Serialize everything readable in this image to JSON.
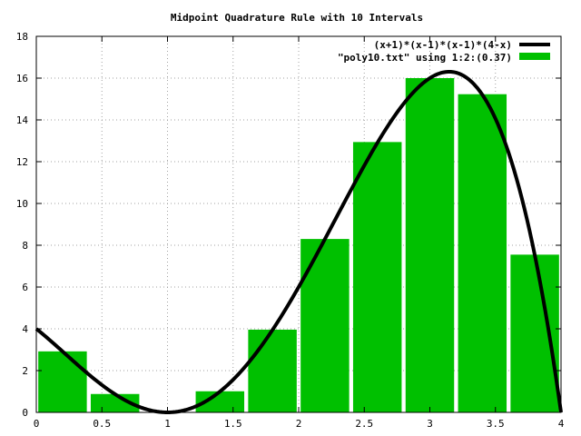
{
  "chart_data": {
    "type": "bar",
    "title": "Midpoint Quadrature Rule with 10 Intervals",
    "xlabel": "",
    "ylabel": "",
    "xlim": [
      0,
      4
    ],
    "ylim": [
      0,
      18
    ],
    "x_ticks": [
      "0",
      "0.5",
      "1",
      "1.5",
      "2",
      "2.5",
      "3",
      "3.5",
      "4"
    ],
    "y_ticks": [
      "0",
      "2",
      "4",
      "6",
      "8",
      "10",
      "12",
      "14",
      "16",
      "18"
    ],
    "grid": true,
    "legend_position": "top-right",
    "bar_width": 0.37,
    "series": [
      {
        "name": "(x+1)*(x-1)*(x-1)*(4-x)",
        "type": "line",
        "color": "#000000",
        "function": "(x+1)*(x-1)*(x-1)*(4-x)"
      },
      {
        "name": "\"poly10.txt\" using 1:2:(0.37)",
        "type": "bar",
        "color": "#00c000",
        "x": [
          0.2,
          0.6,
          1.0,
          1.4,
          1.8,
          2.2,
          2.6,
          3.0,
          3.4,
          3.8
        ],
        "values": [
          2.92,
          0.88,
          0.0,
          1.01,
          3.96,
          8.3,
          12.94,
          16.0,
          15.23,
          7.55
        ]
      }
    ]
  }
}
